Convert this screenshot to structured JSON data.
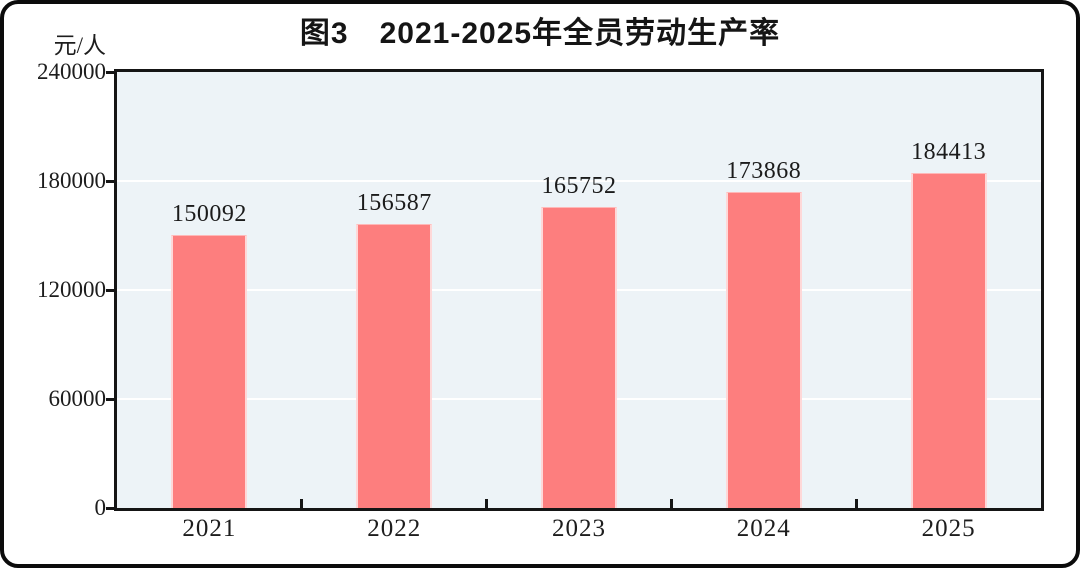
{
  "figure": {
    "title": "图3　2021-2025年全员劳动生产率",
    "unit_label": "元/人"
  },
  "chart_data": {
    "type": "bar",
    "title": "图3　2021-2025年全员劳动生产率",
    "ylabel": "元/人",
    "xlabel": "",
    "categories": [
      "2021",
      "2022",
      "2023",
      "2024",
      "2025"
    ],
    "values": [
      150092,
      156587,
      165752,
      173868,
      184413
    ],
    "value_labels_shown": true,
    "ylim": [
      0,
      240000
    ],
    "yticks": [
      0,
      60000,
      120000,
      180000,
      240000
    ],
    "grid": "horizontal",
    "legend": "none",
    "colors": {
      "bar": "#fd7e7e",
      "plot_background": "#edf3f7",
      "gridline": "#ffffff",
      "axis": "#151515",
      "text": "#1d1d1d"
    }
  }
}
